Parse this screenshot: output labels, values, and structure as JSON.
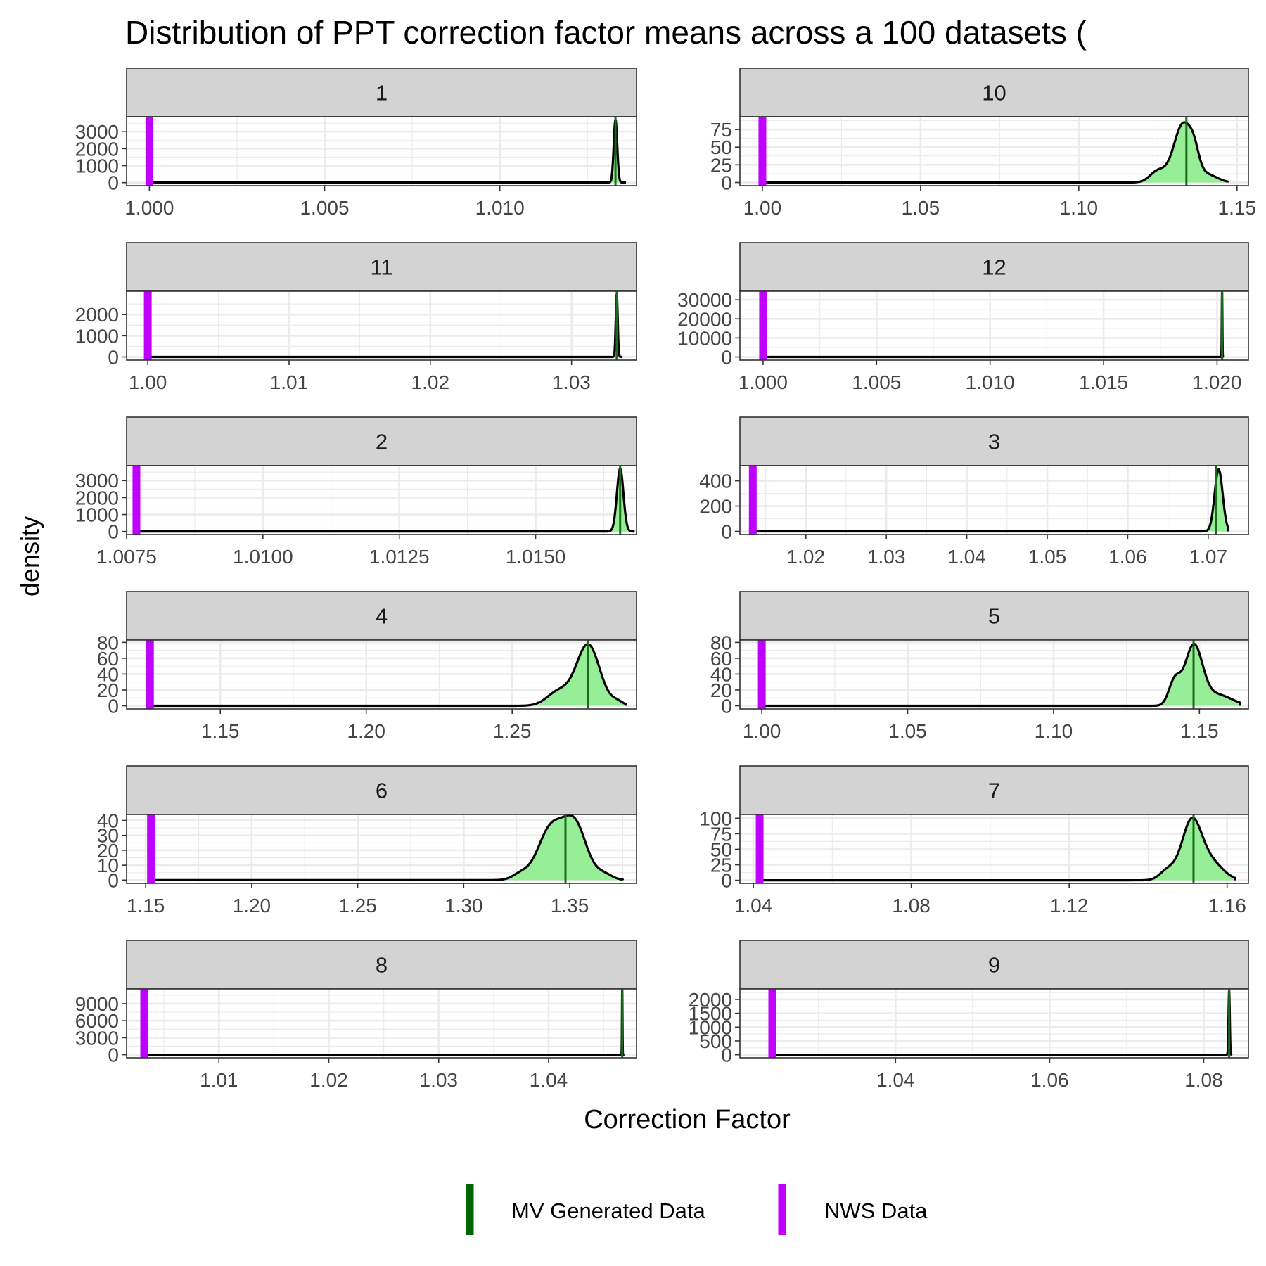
{
  "chart_data": {
    "type": "area",
    "title": "Distribution of PPT correction factor means across a 100 datasets (",
    "xlabel": "Correction Factor",
    "ylabel": "density",
    "grid": true,
    "legend_position": "bottom",
    "legend": [
      {
        "name": "MV Generated Data",
        "color": "#006400"
      },
      {
        "name": "NWS Data",
        "color": "#BF00FF"
      }
    ],
    "colors": {
      "fill": "#90EE90",
      "curve": "#000000",
      "mv_line": "#1a6b1a",
      "nws_line": "#BF00FF",
      "strip": "#D3D3D3",
      "grid": "#EBEBEB"
    },
    "panels": [
      {
        "label": "1",
        "xlim": [
          0.99935,
          1.0139
        ],
        "ylim": [
          -180,
          3880
        ],
        "xticks": [
          1.0,
          1.005,
          1.01
        ],
        "xtick_labels": [
          "1.000",
          "1.005",
          "1.010"
        ],
        "yticks": [
          0,
          1000,
          2000,
          3000
        ],
        "ytick_labels": [
          "0",
          "1000",
          "2000",
          "3000"
        ],
        "nws_value": 1.0,
        "mv_mean": 1.0133,
        "mv_min": 1.01315,
        "mv_max": 1.0136,
        "peaks": [
          [
            1.0133,
            5e-05,
            3700
          ]
        ]
      },
      {
        "label": "10",
        "xlim": [
          0.9929,
          1.1536
        ],
        "ylim": [
          -4.5,
          93
        ],
        "xticks": [
          1.0,
          1.05,
          1.1,
          1.15
        ],
        "xtick_labels": [
          "1.00",
          "1.05",
          "1.10",
          "1.15"
        ],
        "yticks": [
          0,
          25,
          50,
          75
        ],
        "ytick_labels": [
          "0",
          "25",
          "50",
          "75"
        ],
        "nws_value": 1.0,
        "mv_mean": 1.134,
        "mv_min": 1.12,
        "mv_max": 1.147,
        "peaks": [
          [
            1.133,
            0.003,
            83
          ],
          [
            1.1365,
            0.0015,
            20
          ],
          [
            1.125,
            0.0025,
            16
          ],
          [
            1.141,
            0.003,
            10
          ]
        ]
      },
      {
        "label": "11",
        "xlim": [
          0.9985,
          1.0346
        ],
        "ylim": [
          -150,
          3100
        ],
        "xticks": [
          1.0,
          1.01,
          1.02,
          1.03
        ],
        "xtick_labels": [
          "1.00",
          "1.01",
          "1.02",
          "1.03"
        ],
        "yticks": [
          0,
          1000,
          2000
        ],
        "ytick_labels": [
          "0",
          "1000",
          "2000"
        ],
        "nws_value": 1.0,
        "mv_mean": 1.0332,
        "mv_min": 1.0329,
        "mv_max": 1.0336,
        "peaks": [
          [
            1.0332,
            7e-05,
            2950
          ]
        ]
      },
      {
        "label": "12",
        "xlim": [
          0.99898,
          1.02138
        ],
        "ylim": [
          -1650,
          34500
        ],
        "xticks": [
          1.0,
          1.005,
          1.01,
          1.015,
          1.02
        ],
        "xtick_labels": [
          "1.000",
          "1.005",
          "1.010",
          "1.015",
          "1.020"
        ],
        "yticks": [
          0,
          10000,
          20000,
          30000
        ],
        "ytick_labels": [
          "0",
          "10000",
          "20000",
          "30000"
        ],
        "nws_value": 1.0,
        "mv_mean": 1.02022,
        "mv_min": 1.02018,
        "mv_max": 1.02028,
        "peaks": [
          [
            1.02022,
            1.2e-05,
            34000
          ]
        ]
      },
      {
        "label": "2",
        "xlim": [
          1.0075,
          1.01685
        ],
        "ylim": [
          -180,
          3880
        ],
        "xticks": [
          1.0075,
          1.01,
          1.0125,
          1.015
        ],
        "xtick_labels": [
          "1.0075",
          "1.0100",
          "1.0125",
          "1.0150"
        ],
        "yticks": [
          0,
          1000,
          2000,
          3000
        ],
        "ytick_labels": [
          "0",
          "1000",
          "2000",
          "3000"
        ],
        "nws_value": 1.00768,
        "mv_mean": 1.01655,
        "mv_min": 1.0163,
        "mv_max": 1.0168,
        "peaks": [
          [
            1.01655,
            6e-05,
            3700
          ]
        ]
      },
      {
        "label": "3",
        "xlim": [
          1.0118,
          1.075
        ],
        "ylim": [
          -25,
          520
        ],
        "xticks": [
          1.02,
          1.03,
          1.04,
          1.05,
          1.06,
          1.07
        ],
        "xtick_labels": [
          "1.02",
          "1.03",
          "1.04",
          "1.05",
          "1.06",
          "1.07"
        ],
        "yticks": [
          0,
          200,
          400
        ],
        "ytick_labels": [
          "0",
          "200",
          "400"
        ],
        "nws_value": 1.0134,
        "mv_mean": 1.071,
        "mv_min": 1.0695,
        "mv_max": 1.0725,
        "peaks": [
          [
            1.0713,
            0.0005,
            490
          ]
        ]
      },
      {
        "label": "4",
        "xlim": [
          1.1179,
          1.2926
        ],
        "ylim": [
          -4,
          83
        ],
        "xticks": [
          1.15,
          1.2,
          1.25
        ],
        "xtick_labels": [
          "1.15",
          "1.20",
          "1.25"
        ],
        "yticks": [
          0,
          20,
          40,
          60,
          80
        ],
        "ytick_labels": [
          "0",
          "20",
          "40",
          "60",
          "80"
        ],
        "nws_value": 1.1259,
        "mv_mean": 1.276,
        "mv_min": 1.258,
        "mv_max": 1.289,
        "peaks": [
          [
            1.276,
            0.004,
            77
          ],
          [
            1.266,
            0.004,
            18
          ],
          [
            1.286,
            0.002,
            5
          ]
        ]
      },
      {
        "label": "5",
        "xlim": [
          0.9925,
          1.1668
        ],
        "ylim": [
          -4,
          83
        ],
        "xticks": [
          1.0,
          1.05,
          1.1,
          1.15
        ],
        "xtick_labels": [
          "1.00",
          "1.05",
          "1.10",
          "1.15"
        ],
        "yticks": [
          0,
          20,
          40,
          60,
          80
        ],
        "ytick_labels": [
          "0",
          "20",
          "40",
          "60",
          "80"
        ],
        "nws_value": 1.0,
        "mv_mean": 1.148,
        "mv_min": 1.13,
        "mv_max": 1.164,
        "peaks": [
          [
            1.148,
            0.003,
            74
          ],
          [
            1.1415,
            0.002,
            30
          ],
          [
            1.156,
            0.005,
            14
          ]
        ]
      },
      {
        "label": "6",
        "xlim": [
          1.141,
          1.3815
        ],
        "ylim": [
          -2.2,
          44
        ],
        "xticks": [
          1.15,
          1.2,
          1.25,
          1.3,
          1.35
        ],
        "xtick_labels": [
          "1.15",
          "1.20",
          "1.25",
          "1.30",
          "1.35"
        ],
        "yticks": [
          0,
          10,
          20,
          30,
          40
        ],
        "ytick_labels": [
          "0",
          "10",
          "20",
          "30",
          "40"
        ],
        "nws_value": 1.1525,
        "mv_mean": 1.348,
        "mv_min": 1.315,
        "mv_max": 1.375,
        "peaks": [
          [
            1.341,
            0.006,
            34
          ],
          [
            1.3525,
            0.0055,
            36
          ],
          [
            1.327,
            0.004,
            4
          ],
          [
            1.366,
            0.004,
            4
          ]
        ]
      },
      {
        "label": "7",
        "xlim": [
          1.0366,
          1.1654
        ],
        "ylim": [
          -5,
          106
        ],
        "xticks": [
          1.04,
          1.08,
          1.12,
          1.16
        ],
        "xtick_labels": [
          "1.04",
          "1.08",
          "1.12",
          "1.16"
        ],
        "yticks": [
          0,
          25,
          50,
          75,
          100
        ],
        "ytick_labels": [
          "0",
          "25",
          "50",
          "75",
          "100"
        ],
        "nws_value": 1.0416,
        "mv_mean": 1.1515,
        "mv_min": 1.139,
        "mv_max": 1.162,
        "peaks": [
          [
            1.151,
            0.0025,
            93
          ],
          [
            1.145,
            0.002,
            16
          ],
          [
            1.156,
            0.003,
            28
          ]
        ]
      },
      {
        "label": "8",
        "xlim": [
          1.0016,
          1.048
        ],
        "ylim": [
          -550,
          11600
        ],
        "xticks": [
          1.01,
          1.02,
          1.03,
          1.04
        ],
        "xtick_labels": [
          "1.01",
          "1.02",
          "1.03",
          "1.04"
        ],
        "yticks": [
          0,
          3000,
          6000,
          9000
        ],
        "ytick_labels": [
          "0",
          "3000",
          "6000",
          "9000"
        ],
        "nws_value": 1.0032,
        "mv_mean": 1.0467,
        "mv_min": 1.0466,
        "mv_max": 1.0469,
        "peaks": [
          [
            1.0467,
            2.2e-05,
            11400
          ]
        ]
      },
      {
        "label": "9",
        "xlim": [
          1.0198,
          1.0858
        ],
        "ylim": [
          -110,
          2380
        ],
        "xticks": [
          1.04,
          1.06,
          1.08
        ],
        "xtick_labels": [
          "1.04",
          "1.06",
          "1.08"
        ],
        "yticks": [
          0,
          500,
          1000,
          1500,
          2000
        ],
        "ytick_labels": [
          "0",
          "500",
          "1000",
          "1500",
          "2000"
        ],
        "nws_value": 1.024,
        "mv_mean": 1.0833,
        "mv_min": 1.0831,
        "mv_max": 1.0836,
        "peaks": [
          [
            1.0833,
            8e-05,
            2300
          ]
        ]
      }
    ]
  }
}
